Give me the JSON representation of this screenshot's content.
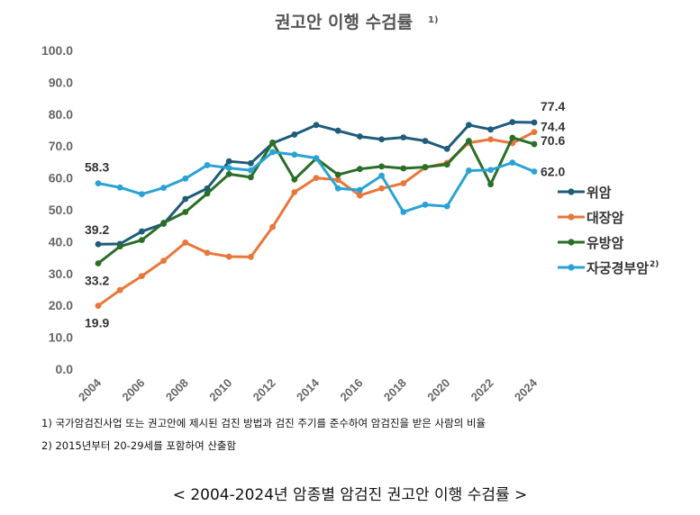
{
  "chart_data": {
    "type": "line",
    "title": "권고안 이행 수검률",
    "title_sup": "1)",
    "x": [
      2004,
      2005,
      2006,
      2007,
      2008,
      2009,
      2010,
      2011,
      2012,
      2013,
      2014,
      2015,
      2016,
      2017,
      2018,
      2019,
      2020,
      2021,
      2022,
      2023,
      2024
    ],
    "x_tick_labels": [
      "2004",
      "2006",
      "2008",
      "2010",
      "2012",
      "2014",
      "2016",
      "2018",
      "2020",
      "2022",
      "2024"
    ],
    "y_tick_labels": [
      "100.0",
      "90.0",
      "80.0",
      "70.0",
      "60.0",
      "50.0",
      "40.0",
      "30.0",
      "20.0",
      "10.0",
      "0.0"
    ],
    "ylim": [
      0,
      100
    ],
    "grid": false,
    "legend_position": "right",
    "series": [
      {
        "name": "위암",
        "sup": "",
        "color": "#1f5c7a",
        "values": [
          39.2,
          39.3,
          43.2,
          45.6,
          53.4,
          56.7,
          65.2,
          64.6,
          70.9,
          73.6,
          76.6,
          74.8,
          73.0,
          72.1,
          72.7,
          71.6,
          69.1,
          76.6,
          75.2,
          77.5,
          77.4
        ]
      },
      {
        "name": "대장암",
        "sup": "",
        "color": "#e8773a",
        "values": [
          19.9,
          24.8,
          29.2,
          34.0,
          39.7,
          36.5,
          35.3,
          35.2,
          44.6,
          55.5,
          60.0,
          59.4,
          54.5,
          56.7,
          58.3,
          63.3,
          64.7,
          71.0,
          72.1,
          70.9,
          74.4
        ]
      },
      {
        "name": "유방암",
        "sup": "",
        "color": "#2a6e27",
        "values": [
          33.2,
          38.5,
          40.5,
          45.9,
          49.3,
          55.1,
          61.2,
          60.2,
          71.1,
          59.5,
          66.1,
          61.0,
          62.8,
          63.6,
          63.0,
          63.4,
          64.2,
          71.6,
          58.0,
          72.6,
          70.6
        ]
      },
      {
        "name": "자궁경부암",
        "sup": "2)",
        "color": "#2aa3d4",
        "values": [
          58.3,
          57.0,
          54.9,
          56.9,
          59.8,
          64.0,
          63.1,
          62.4,
          68.1,
          67.3,
          66.2,
          56.7,
          56.2,
          60.7,
          49.3,
          51.6,
          51.1,
          62.3,
          62.5,
          64.8,
          62.0
        ]
      }
    ],
    "data_labels": [
      {
        "text": "58.3",
        "series": 3,
        "index": 0
      },
      {
        "text": "39.2",
        "series": 0,
        "index": 0
      },
      {
        "text": "33.2",
        "series": 2,
        "index": 0
      },
      {
        "text": "19.9",
        "series": 1,
        "index": 0
      },
      {
        "text": "77.4",
        "series": 0,
        "index": 20
      },
      {
        "text": "74.4",
        "series": 1,
        "index": 20
      },
      {
        "text": "70.6",
        "series": 2,
        "index": 20
      },
      {
        "text": "62.0",
        "series": 3,
        "index": 20
      }
    ]
  },
  "notes": [
    "1) 국가암검진사업 또는 권고안에 제시된 검진 방법과 검진 주기를 준수하여 암검진을 받은 사람의 비율",
    "2) 2015년부터 20-29세를 포함하여 산출함"
  ],
  "caption": "< 2004-2024년 암종별 암검진 권고안 이행 수검률 >"
}
